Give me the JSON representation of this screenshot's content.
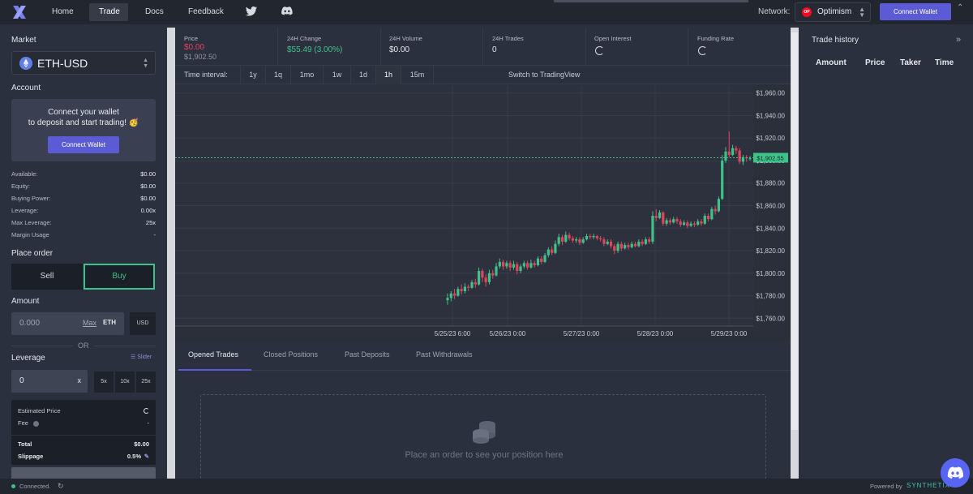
{
  "nav": {
    "home": "Home",
    "trade": "Trade",
    "docs": "Docs",
    "feedback": "Feedback",
    "network_label": "Network:",
    "network_name": "Optimism",
    "network_badge": "OP",
    "connect_wallet": "Connect Wallet"
  },
  "left": {
    "market_heading": "Market",
    "market_value": "ETH-USD",
    "account_heading": "Account",
    "account_msg_1": "Connect your wallet",
    "account_msg_2": "to deposit and start trading! 🥳",
    "connect_wallet": "Connect Wallet",
    "stats": [
      {
        "label": "Available:",
        "value": "$0.00"
      },
      {
        "label": "Equity:",
        "value": "$0.00"
      },
      {
        "label": "Buying Power:",
        "value": "$0.00"
      },
      {
        "label": "Leverage:",
        "value": "0.00x"
      },
      {
        "label": "Max Leverage:",
        "value": "25x"
      },
      {
        "label": "Margin Usage",
        "value": "-"
      }
    ],
    "place_order_heading": "Place order",
    "sell": "Sell",
    "buy": "Buy",
    "amount_heading": "Amount",
    "amount_value": "0.000",
    "max": "Max",
    "eth_unit": "ETH",
    "usd_unit": "USD",
    "or": "OR",
    "leverage_heading": "Leverage",
    "slider_link": "Slider",
    "leverage_value": "0",
    "leverage_suffix": "x",
    "leverage_presets": [
      "5x",
      "10x",
      "25x"
    ],
    "summary": {
      "estimated_price_label": "Estimated Price",
      "fee_label": "Fee",
      "fee_value": "-",
      "total_label": "Total",
      "total_value": "$0.00",
      "slippage_label": "Slippage",
      "slippage_value": "0.5%"
    }
  },
  "stats_bar": [
    {
      "label": "Price",
      "value": "$0.00",
      "sub": "$1,902.50",
      "color": "#e2445c"
    },
    {
      "label": "24H Change",
      "value": "$55.49 (3.00%)",
      "sub": "",
      "color": "#3ec289"
    },
    {
      "label": "24H Volume",
      "value": "$0.00",
      "sub": "",
      "color": "#e6e8ee"
    },
    {
      "label": "24H Trades",
      "value": "0",
      "sub": "",
      "color": "#e6e8ee"
    },
    {
      "label": "Open Interest",
      "value": "",
      "sub": "",
      "color": "#e6e8ee"
    },
    {
      "label": "Funding Rate",
      "value": "",
      "sub": "",
      "color": "#e6e8ee"
    }
  ],
  "intervals": {
    "label": "Time interval:",
    "options": [
      "1y",
      "1q",
      "1mo",
      "1w",
      "1d",
      "1h",
      "15m"
    ],
    "active": "1h",
    "switch_tv": "Switch to TradingView"
  },
  "chart_data": {
    "type": "candlestick",
    "y_ticks": [
      "$1,960.00",
      "$1,940.00",
      "$1,920.00",
      "$1,900.00",
      "$1,880.00",
      "$1,860.00",
      "$1,840.00",
      "$1,820.00",
      "$1,800.00",
      "$1,780.00",
      "$1,760.00"
    ],
    "x_ticks": [
      "5/25/23 6:00",
      "5/26/23 0:00",
      "5/27/23 0:00",
      "5/28/23 0:00",
      "5/29/23 0:00"
    ],
    "current_price_label": "$1,902.55",
    "current_price": 1902.55,
    "ylim": [
      1753,
      1967
    ],
    "up_color": "#3ec289",
    "down_color": "#e2445c",
    "candles": [
      [
        1776,
        1778,
        1782,
        1772
      ],
      [
        1778,
        1782,
        1784,
        1775
      ],
      [
        1782,
        1780,
        1786,
        1777
      ],
      [
        1780,
        1786,
        1788,
        1779
      ],
      [
        1786,
        1784,
        1790,
        1781
      ],
      [
        1784,
        1788,
        1791,
        1782
      ],
      [
        1788,
        1787,
        1790,
        1784
      ],
      [
        1787,
        1792,
        1794,
        1786
      ],
      [
        1792,
        1790,
        1795,
        1787
      ],
      [
        1790,
        1802,
        1805,
        1789
      ],
      [
        1802,
        1796,
        1804,
        1792
      ],
      [
        1796,
        1792,
        1799,
        1788
      ],
      [
        1792,
        1800,
        1803,
        1790
      ],
      [
        1800,
        1798,
        1803,
        1795
      ],
      [
        1798,
        1806,
        1809,
        1797
      ],
      [
        1806,
        1810,
        1813,
        1804
      ],
      [
        1810,
        1806,
        1812,
        1803
      ],
      [
        1806,
        1809,
        1811,
        1804
      ],
      [
        1809,
        1805,
        1811,
        1802
      ],
      [
        1805,
        1808,
        1811,
        1803
      ],
      [
        1808,
        1802,
        1810,
        1799
      ],
      [
        1802,
        1806,
        1808,
        1800
      ],
      [
        1806,
        1809,
        1811,
        1804
      ],
      [
        1809,
        1805,
        1811,
        1803
      ],
      [
        1805,
        1809,
        1812,
        1804
      ],
      [
        1809,
        1807,
        1811,
        1805
      ],
      [
        1807,
        1813,
        1815,
        1806
      ],
      [
        1813,
        1810,
        1815,
        1808
      ],
      [
        1810,
        1816,
        1818,
        1809
      ],
      [
        1816,
        1821,
        1823,
        1814
      ],
      [
        1821,
        1818,
        1824,
        1816
      ],
      [
        1818,
        1826,
        1829,
        1817
      ],
      [
        1826,
        1832,
        1835,
        1824
      ],
      [
        1832,
        1828,
        1834,
        1825
      ],
      [
        1828,
        1834,
        1837,
        1827
      ],
      [
        1834,
        1831,
        1836,
        1829
      ],
      [
        1831,
        1829,
        1833,
        1827
      ],
      [
        1829,
        1830,
        1832,
        1827
      ],
      [
        1830,
        1827,
        1832,
        1825
      ],
      [
        1827,
        1830,
        1832,
        1826
      ],
      [
        1830,
        1833,
        1835,
        1829
      ],
      [
        1833,
        1832,
        1835,
        1830
      ],
      [
        1832,
        1833,
        1835,
        1830
      ],
      [
        1833,
        1831,
        1834,
        1829
      ],
      [
        1831,
        1830,
        1833,
        1828
      ],
      [
        1830,
        1826,
        1832,
        1824
      ],
      [
        1826,
        1828,
        1830,
        1825
      ],
      [
        1828,
        1824,
        1830,
        1822
      ],
      [
        1824,
        1820,
        1826,
        1817
      ],
      [
        1820,
        1826,
        1828,
        1818
      ],
      [
        1826,
        1822,
        1828,
        1820
      ],
      [
        1822,
        1825,
        1827,
        1821
      ],
      [
        1825,
        1823,
        1827,
        1821
      ],
      [
        1823,
        1826,
        1828,
        1822
      ],
      [
        1826,
        1824,
        1828,
        1823
      ],
      [
        1824,
        1828,
        1830,
        1823
      ],
      [
        1828,
        1826,
        1830,
        1824
      ],
      [
        1826,
        1830,
        1832,
        1825
      ],
      [
        1830,
        1828,
        1832,
        1826
      ],
      [
        1828,
        1851,
        1855,
        1826
      ],
      [
        1851,
        1849,
        1857,
        1846
      ],
      [
        1849,
        1854,
        1856,
        1848
      ],
      [
        1854,
        1844,
        1855,
        1842
      ],
      [
        1844,
        1847,
        1849,
        1842
      ],
      [
        1847,
        1845,
        1849,
        1843
      ],
      [
        1845,
        1848,
        1850,
        1844
      ],
      [
        1848,
        1846,
        1850,
        1844
      ],
      [
        1846,
        1843,
        1848,
        1841
      ],
      [
        1843,
        1845,
        1847,
        1842
      ],
      [
        1845,
        1842,
        1847,
        1840
      ],
      [
        1842,
        1844,
        1846,
        1841
      ],
      [
        1844,
        1843,
        1846,
        1841
      ],
      [
        1843,
        1846,
        1848,
        1842
      ],
      [
        1846,
        1844,
        1848,
        1842
      ],
      [
        1844,
        1851,
        1853,
        1843
      ],
      [
        1851,
        1848,
        1853,
        1846
      ],
      [
        1848,
        1857,
        1859,
        1847
      ],
      [
        1857,
        1855,
        1860,
        1852
      ],
      [
        1855,
        1866,
        1868,
        1854
      ],
      [
        1866,
        1900,
        1905,
        1865
      ],
      [
        1900,
        1908,
        1912,
        1898
      ],
      [
        1908,
        1905,
        1926,
        1903
      ],
      [
        1905,
        1911,
        1914,
        1904
      ],
      [
        1911,
        1909,
        1913,
        1906
      ],
      [
        1909,
        1899,
        1911,
        1897
      ],
      [
        1899,
        1903,
        1905,
        1896
      ],
      [
        1903,
        1902,
        1905,
        1899
      ],
      [
        1902,
        1902,
        1904,
        1900
      ]
    ]
  },
  "trades_tabs": [
    "Opened Trades",
    "Closed Positions",
    "Past Deposits",
    "Past Withdrawals"
  ],
  "empty_msg": "Place an order to see your position here",
  "trade_history": {
    "title": "Trade history",
    "columns": [
      "Amount",
      "Price",
      "Taker",
      "Time"
    ]
  },
  "footer": {
    "status": "Connected.",
    "powered_by": "Powered by",
    "brand": "SYNTHETIX"
  }
}
